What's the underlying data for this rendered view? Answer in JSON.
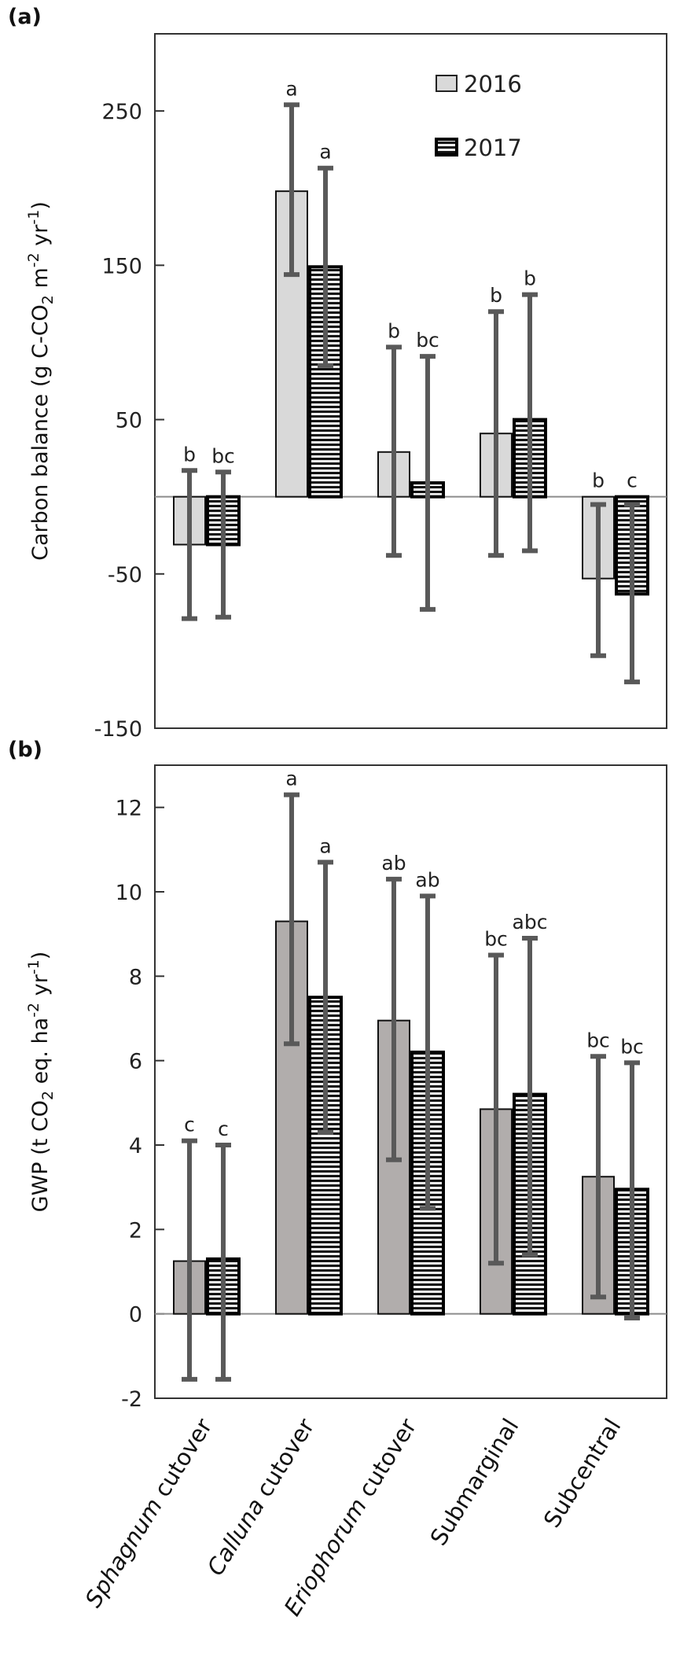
{
  "chart_data": [
    {
      "type": "bar",
      "panel_label": "(a)",
      "title": "",
      "ylabel_parts": [
        [
          "Carbon balance (g C-CO",
          ""
        ],
        [
          "2",
          "sub"
        ],
        [
          " m",
          ""
        ],
        [
          "-2",
          "sup"
        ],
        [
          " yr",
          ""
        ],
        [
          "-1",
          "sup"
        ],
        [
          ")",
          ""
        ]
      ],
      "ylim": [
        -150,
        300
      ],
      "yticks": [
        -150,
        -50,
        50,
        150,
        250
      ],
      "legend": {
        "position": "top-right",
        "entries": [
          "2016",
          "2017"
        ]
      },
      "categories": [
        "Sphagnum cutover",
        "Calluna cutover",
        "Eriophorum cutover",
        "Submarginal",
        "Subcentral"
      ],
      "series": [
        {
          "name": "2016",
          "values": [
            -31,
            198,
            29,
            41,
            -53
          ],
          "err_high": [
            17,
            254,
            97,
            120,
            -5
          ],
          "err_low": [
            -79,
            144,
            -38,
            -38,
            -103
          ],
          "letters": [
            "b",
            "a",
            "b",
            "b",
            "b"
          ]
        },
        {
          "name": "2017",
          "values": [
            -31,
            149,
            9,
            50,
            -63
          ],
          "err_high": [
            16,
            213,
            91,
            131,
            -5
          ],
          "err_low": [
            -78,
            85,
            -73,
            -35,
            -120
          ],
          "letters": [
            "bc",
            "a",
            "bc",
            "b",
            "c"
          ]
        }
      ]
    },
    {
      "type": "bar",
      "panel_label": "(b)",
      "title": "",
      "ylabel_parts": [
        [
          "GWP (t CO",
          ""
        ],
        [
          "2",
          "sub"
        ],
        [
          " eq. ha",
          ""
        ],
        [
          "-2",
          "sup"
        ],
        [
          " yr",
          ""
        ],
        [
          "-1",
          "sup"
        ],
        [
          ")",
          ""
        ]
      ],
      "ylim": [
        -2,
        13
      ],
      "yticks": [
        -2,
        0,
        2,
        4,
        6,
        8,
        10,
        12
      ],
      "categories": [
        "Sphagnum cutover",
        "Calluna cutover",
        "Eriophorum cutover",
        "Submarginal",
        "Subcentral"
      ],
      "series": [
        {
          "name": "2016",
          "values": [
            1.25,
            9.3,
            6.95,
            4.85,
            3.25
          ],
          "err_high": [
            4.1,
            12.3,
            10.3,
            8.5,
            6.1
          ],
          "err_low": [
            -1.55,
            6.4,
            3.65,
            1.2,
            0.4
          ],
          "letters": [
            "c",
            "a",
            "ab",
            "bc",
            "bc"
          ]
        },
        {
          "name": "2017",
          "values": [
            1.3,
            7.5,
            6.2,
            5.2,
            2.95
          ],
          "err_high": [
            4.0,
            10.7,
            9.9,
            8.9,
            5.95
          ],
          "err_low": [
            -1.55,
            4.3,
            2.5,
            1.4,
            -0.1
          ],
          "letters": [
            "c",
            "a",
            "ab",
            "abc",
            "bc"
          ]
        }
      ]
    }
  ],
  "x_labels": [
    {
      "italic": "Sphagnum",
      "rest": " cutover"
    },
    {
      "italic": "Calluna",
      "rest": " cutover"
    },
    {
      "italic": "Eriophorum",
      "rest": " cutover"
    },
    {
      "italic": "",
      "rest": "Submarginal"
    },
    {
      "italic": "",
      "rest": "Subcentral"
    }
  ],
  "colors": {
    "a_2016": "#d9d9d9",
    "b_2016": "#b1adac",
    "stripe_dark": "#111111",
    "stripe_light": "#f2f2f2",
    "error_bar": "#595959",
    "zero_line": "#8c8c8c",
    "axis": "#333333"
  }
}
